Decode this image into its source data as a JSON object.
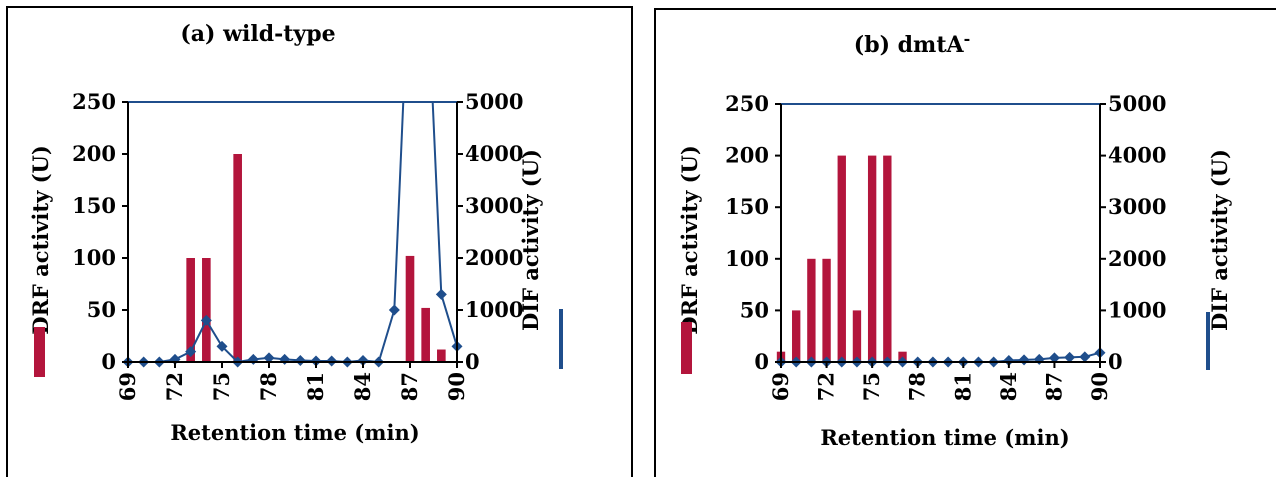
{
  "chart_data": [
    {
      "type": "bar+line",
      "title": "(a) wild-type",
      "xlabel": "Retention time (min)",
      "ylabel_left": "DRF activity (U)",
      "ylabel_right": "DIF activity (U)",
      "xlim": [
        69,
        90
      ],
      "xticks": [
        "69",
        "72",
        "75",
        "78",
        "81",
        "84",
        "87",
        "90"
      ],
      "ylim_left": [
        0,
        250
      ],
      "yticks_left": [
        "0",
        "50",
        "100",
        "150",
        "200",
        "250"
      ],
      "ylim_right": [
        0,
        5000
      ],
      "yticks_right": [
        "0",
        "1000",
        "2000",
        "3000",
        "4000",
        "5000"
      ],
      "grid": false,
      "series": [
        {
          "type": "bar",
          "axis": "left",
          "color": "#b3153c",
          "x": [
            73,
            74,
            76,
            87,
            88,
            89
          ],
          "values": [
            100,
            100,
            200,
            102,
            52,
            12
          ]
        },
        {
          "type": "line",
          "axis": "right",
          "color": "#1f4e8c",
          "x": [
            69,
            70,
            71,
            72,
            73,
            74,
            75,
            76,
            77,
            78,
            79,
            80,
            81,
            82,
            83,
            84,
            85,
            86,
            87,
            88,
            89,
            90
          ],
          "values": [
            0,
            0,
            0,
            50,
            200,
            800,
            300,
            0,
            50,
            80,
            50,
            30,
            20,
            20,
            0,
            30,
            0,
            1000,
            8000,
            8000,
            1300,
            300
          ],
          "markers": [
            true,
            true,
            true,
            true,
            true,
            true,
            true,
            true,
            true,
            true,
            true,
            true,
            true,
            true,
            true,
            true,
            true,
            true,
            false,
            false,
            true,
            true
          ]
        }
      ]
    },
    {
      "type": "bar+line",
      "title": "(b) dmtA",
      "title_superscript": "-",
      "xlabel": "Retention time (min)",
      "ylabel_left": "DRF activity (U)",
      "ylabel_right": "DIF activity (U)",
      "xlim": [
        69,
        90
      ],
      "xticks": [
        "69",
        "72",
        "75",
        "78",
        "81",
        "84",
        "87",
        "90"
      ],
      "ylim_left": [
        0,
        250
      ],
      "yticks_left": [
        "0",
        "50",
        "100",
        "150",
        "200",
        "250"
      ],
      "ylim_right": [
        0,
        5000
      ],
      "yticks_right": [
        "0",
        "1000",
        "2000",
        "3000",
        "4000",
        "5000"
      ],
      "grid": false,
      "series": [
        {
          "type": "bar",
          "axis": "left",
          "color": "#b3153c",
          "x": [
            69,
            70,
            71,
            72,
            73,
            74,
            75,
            76,
            77
          ],
          "values": [
            10,
            50,
            100,
            100,
            200,
            50,
            200,
            200,
            10
          ]
        },
        {
          "type": "line",
          "axis": "right",
          "color": "#1f4e8c",
          "x": [
            69,
            70,
            71,
            72,
            73,
            74,
            75,
            76,
            77,
            78,
            79,
            80,
            81,
            82,
            83,
            84,
            85,
            86,
            87,
            88,
            89,
            90
          ],
          "values": [
            0,
            0,
            0,
            0,
            0,
            0,
            0,
            0,
            0,
            0,
            0,
            0,
            0,
            0,
            0,
            30,
            40,
            50,
            80,
            90,
            100,
            180
          ]
        }
      ]
    }
  ]
}
